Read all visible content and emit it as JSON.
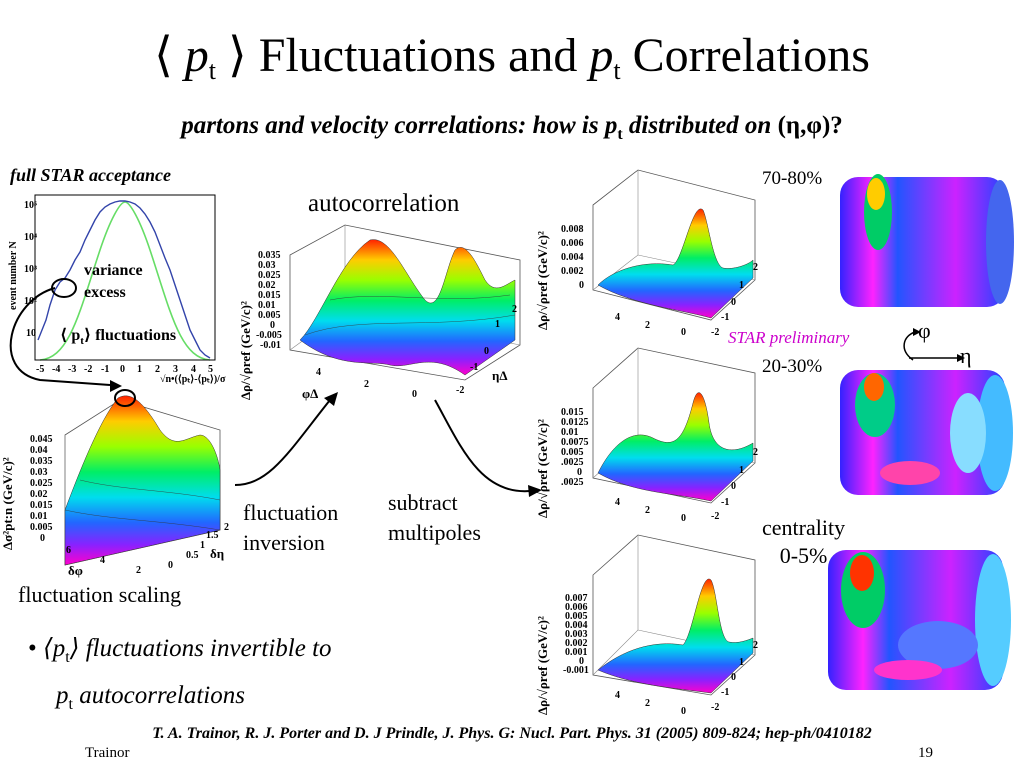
{
  "title": {
    "open": "⟨",
    "p": "p",
    "sub_t": "t",
    "close": "⟩",
    "fluct": " Fluctuations and ",
    "p2": "p",
    "sub_t2": "t",
    "corr": " Correlations"
  },
  "subtitle": {
    "pre": "partons and velocity correlations: how is p",
    "sub": "t",
    "post": " distributed on ",
    "coords": "(η,φ)?"
  },
  "labels": {
    "full_acceptance": "full STAR acceptance",
    "variance": "variance",
    "excess": "excess",
    "pt_fluct": "⟨ p",
    "pt_fluct_sub": "t",
    "pt_fluct_post": "⟩ fluctuations",
    "autocorrelation": "autocorrelation",
    "fluct_inversion_1": "fluctuation",
    "fluct_inversion_2": "inversion",
    "subtract_1": "subtract",
    "subtract_2": "multipoles",
    "fluct_scaling": "fluctuation scaling",
    "cent_7080": "70-80%",
    "cent_2030": "20-30%",
    "centrality": "centrality",
    "cent_05": "0-5%",
    "star_prelim": "STAR preliminary",
    "phi": "φ",
    "eta": "η"
  },
  "bullet": {
    "mark": "• ",
    "line1_pre": "⟨p",
    "line1_sub": "t",
    "line1_post": "⟩ fluctuations invertible to",
    "line2_p": "p",
    "line2_sub": "t",
    "line2_post": " autocorrelations"
  },
  "citation": "T. A. Trainor, R. J. Porter and D. J Prindle, J. Phys. G: Nucl. Part. Phys. 31 (2005) 809-824;  hep-ph/0410182",
  "footer": {
    "author": "Trainor",
    "page": "19"
  },
  "histogram": {
    "ylabel": "event number N",
    "xlabel": "√n•(⟨pₜ⟩-⟨pₜ⟩)/σ",
    "xticks": [
      "-5",
      "-4",
      "-3",
      "-2",
      "-1",
      "0",
      "1",
      "2",
      "3",
      "4",
      "5"
    ],
    "yticks": [
      "10⁵",
      "10⁴",
      "10³",
      "10²",
      "10"
    ]
  },
  "plot_scaling": {
    "zlabel": "Δσ²pt:n (GeV/c)²",
    "zticks": [
      "0.045",
      "0.04",
      "0.035",
      "0.03",
      "0.025",
      "0.02",
      "0.015",
      "0.01",
      "0.005",
      "0"
    ],
    "xticks": [
      "6",
      "4",
      "2"
    ],
    "xlabel": "δφ",
    "yticks": [
      "0",
      "0.5",
      "1",
      "1.5",
      "2"
    ],
    "ylabel": "δη"
  },
  "plot_auto": {
    "zlabel": "Δρ/√ρref (GeV/c)²",
    "zticks": [
      "0.035",
      "0.03",
      "0.025",
      "0.02",
      "0.015",
      "0.01",
      "0.005",
      "0",
      "-0.005",
      "-0.01"
    ],
    "xticks": [
      "4",
      "2",
      "0"
    ],
    "xlabel": "φΔ",
    "yticks": [
      "2",
      "1",
      "0",
      "-1",
      "-2"
    ],
    "ylabel": "ηΔ"
  },
  "plot_7080": {
    "zlabel": "Δρ/√ρref (GeV/c)²",
    "zticks": [
      "0.008",
      "0.006",
      "0.004",
      "0.002",
      "0"
    ],
    "xticks": [
      "4",
      "2",
      "0"
    ],
    "yticks": [
      "2",
      "1",
      "0",
      "-1",
      "-2"
    ]
  },
  "plot_2030": {
    "zlabel": "Δρ/√ρref (GeV/c)²",
    "zticks": [
      "0.015",
      "0.0125",
      "0.01",
      "0.0075",
      "0.005",
      "0.0025",
      "0",
      "-.0025"
    ],
    "xticks": [
      "4",
      "2",
      "0"
    ],
    "yticks": [
      "2",
      "1",
      "0",
      "-1",
      "-2"
    ]
  },
  "plot_05": {
    "zlabel": "Δρ/√ρref (GeV/c)²",
    "zticks": [
      "0.007",
      "0.006",
      "0.005",
      "0.004",
      "0.003",
      "0.002",
      "0.001",
      "0",
      "-0.001"
    ],
    "xticks": [
      "4",
      "2",
      "0"
    ],
    "yticks": [
      "2",
      "1",
      "0",
      "-1",
      "-2"
    ]
  }
}
